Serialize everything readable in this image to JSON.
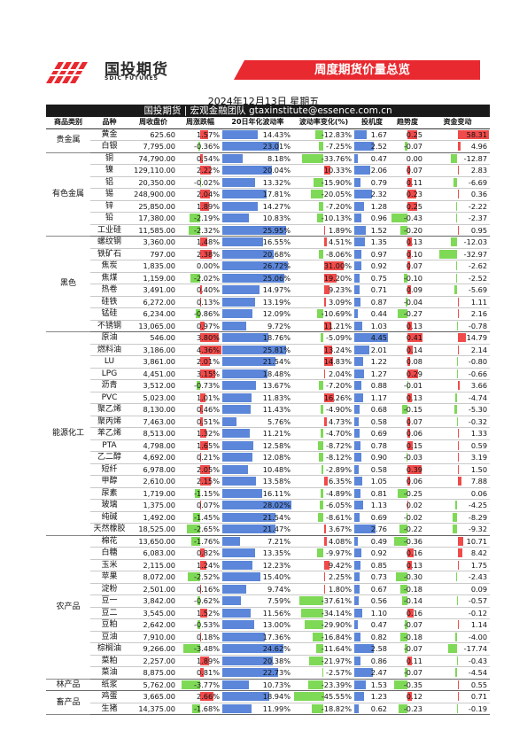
{
  "header": {
    "logo_cn": "国投期货",
    "logo_en": "SDIC FUTURES",
    "title": "周度期货价量总览",
    "date": "2024年12月13日 星期五",
    "team": "国投期货 | 宏观金融团队 gtaxinstitute@essence.com.cn"
  },
  "columns": [
    "商品类别",
    "品种",
    "周收盘价",
    "周涨跌幅",
    "20日年化波动率",
    "波动率变化(%)",
    "投机度",
    "趋势度",
    "资金变动"
  ],
  "colors": {
    "green": "#7ed957",
    "red": "#f04a4a",
    "blue": "#5b86d9",
    "pink": "#f5a3a3"
  },
  "groups": [
    {
      "category": "贵金属",
      "rows": [
        [
          "黄金",
          "625.60",
          "1.57%",
          "14.43%",
          "-12.83%",
          "1.67",
          "0.25",
          "58.31"
        ],
        [
          "白银",
          "7,795.00",
          "-0.36%",
          "23.01%",
          "-7.25%",
          "2.52",
          "-0.07",
          "4.96"
        ]
      ]
    },
    {
      "category": "有色金属",
      "rows": [
        [
          "铜",
          "74,790.00",
          "0.54%",
          "8.18%",
          "-33.76%",
          "0.47",
          "0.00",
          "-12.87"
        ],
        [
          "镍",
          "129,110.00",
          "2.22%",
          "20.04%",
          "10.33%",
          "2.06",
          "0.07",
          "2.83"
        ],
        [
          "铝",
          "20,350.00",
          "-0.02%",
          "13.32%",
          "-15.90%",
          "0.79",
          "0.11",
          "-6.69"
        ],
        [
          "锡",
          "248,900.00",
          "2.04%",
          "17.81%",
          "-20.05%",
          "2.32",
          "0.23",
          "0.36"
        ],
        [
          "锌",
          "25,850.00",
          "1.89%",
          "14.27%",
          "-7.20%",
          "1.28",
          "0.25",
          "-2.22"
        ],
        [
          "铅",
          "17,380.00",
          "-2.19%",
          "10.83%",
          "-10.13%",
          "0.96",
          "-0.43",
          "-2.37"
        ],
        [
          "工业硅",
          "11,585.00",
          "-2.32%",
          "25.95%",
          "1.89%",
          "1.52",
          "-0.20",
          "0.95"
        ]
      ]
    },
    {
      "category": "黑色",
      "rows": [
        [
          "螺纹钢",
          "3,360.00",
          "1.48%",
          "16.55%",
          "4.51%",
          "1.35",
          "0.13",
          "-12.03"
        ],
        [
          "铁矿石",
          "797.00",
          "2.38%",
          "20.68%",
          "-8.06%",
          "0.97",
          "0.10",
          "-32.97"
        ],
        [
          "焦炭",
          "1,835.00",
          "0.00%",
          "26.72%",
          "31.00%",
          "0.92",
          "0.07",
          "-2.62"
        ],
        [
          "焦煤",
          "1,159.00",
          "-2.02%",
          "25.06%",
          "19.20%",
          "0.75",
          "-0.10",
          "-2.52"
        ],
        [
          "热卷",
          "3,491.00",
          "0.40%",
          "14.97%",
          "9.23%",
          "0.71",
          "0.09",
          "-5.69"
        ],
        [
          "硅铁",
          "6,272.00",
          "0.13%",
          "13.19%",
          "3.09%",
          "0.87",
          "-0.04",
          "1.11"
        ],
        [
          "锰硅",
          "6,234.00",
          "-0.86%",
          "12.09%",
          "-10.69%",
          "0.44",
          "-0.27",
          "2.16"
        ],
        [
          "不锈钢",
          "13,065.00",
          "0.97%",
          "9.72%",
          "11.21%",
          "1.03",
          "0.13",
          "-0.78"
        ]
      ]
    },
    {
      "category": "能源化工",
      "rows": [
        [
          "原油",
          "546.00",
          "3.80%",
          "18.76%",
          "-5.09%",
          "4.45",
          "0.41",
          "14.79"
        ],
        [
          "燃料油",
          "3,186.00",
          "4.36%",
          "25.81%",
          "13.24%",
          "2.01",
          "0.14",
          "2.14"
        ],
        [
          "LU",
          "3,861.00",
          "2.01%",
          "21.54%",
          "14.83%",
          "1.22",
          "0.08",
          "-0.80"
        ],
        [
          "LPG",
          "4,451.00",
          "3.15%",
          "18.48%",
          "2.04%",
          "1.27",
          "0.29",
          "-0.66"
        ],
        [
          "沥青",
          "3,512.00",
          "-0.73%",
          "13.67%",
          "-7.20%",
          "0.88",
          "-0.01",
          "3.66"
        ],
        [
          "PVC",
          "5,023.00",
          "1.01%",
          "11.83%",
          "16.26%",
          "1.17",
          "0.13",
          "-4.74"
        ],
        [
          "聚乙烯",
          "8,130.00",
          "0.46%",
          "11.43%",
          "-4.90%",
          "0.68",
          "-0.15",
          "-5.30"
        ],
        [
          "聚丙烯",
          "7,463.00",
          "0.51%",
          "5.76%",
          "4.73%",
          "0.58",
          "0.07",
          "-0.32"
        ],
        [
          "苯乙烯",
          "8,513.00",
          "1.32%",
          "11.21%",
          "-4.70%",
          "0.69",
          "0.06",
          "1.33"
        ],
        [
          "PTA",
          "4,798.00",
          "1.65%",
          "12.58%",
          "-8.72%",
          "0.78",
          "0.15",
          "0.59"
        ],
        [
          "乙二醇",
          "4,692.00",
          "0.21%",
          "12.08%",
          "-8.12%",
          "0.90",
          "-0.03",
          "3.19"
        ],
        [
          "短纤",
          "6,978.00",
          "2.05%",
          "10.48%",
          "-2.89%",
          "0.58",
          "0.39",
          "1.50"
        ],
        [
          "甲醇",
          "2,610.00",
          "2.15%",
          "13.58%",
          "6.35%",
          "1.05",
          "0.06",
          "7.88"
        ],
        [
          "尿素",
          "1,719.00",
          "-1.15%",
          "16.11%",
          "-4.89%",
          "0.81",
          "-0.25",
          "0.06"
        ],
        [
          "玻璃",
          "1,375.00",
          "0.07%",
          "28.02%",
          "-6.05%",
          "1.13",
          "0.02",
          "-4.25"
        ],
        [
          "纯碱",
          "1,492.00",
          "-1.45%",
          "21.54%",
          "-8.61%",
          "0.69",
          "-0.02",
          "-8.29"
        ],
        [
          "天然橡胶",
          "18,525.00",
          "-2.65%",
          "21.47%",
          "3.67%",
          "2.76",
          "-0.22",
          "-9.32"
        ]
      ]
    },
    {
      "category": "农产品",
      "rows": [
        [
          "棉花",
          "13,650.00",
          "-1.76%",
          "7.21%",
          "4.08%",
          "0.49",
          "-0.36",
          "10.71"
        ],
        [
          "白糖",
          "6,083.00",
          "0.82%",
          "13.35%",
          "-9.97%",
          "0.92",
          "0.16",
          "8.42"
        ],
        [
          "玉米",
          "2,115.00",
          "1.24%",
          "12.23%",
          "9.42%",
          "0.85",
          "0.13",
          "1.75"
        ],
        [
          "苹果",
          "8,072.00",
          "-2.52%",
          "15.40%",
          "2.25%",
          "0.73",
          "-0.30",
          "-2.43"
        ],
        [
          "淀粉",
          "2,501.00",
          "0.16%",
          "9.74%",
          "1.80%",
          "0.67",
          "-0.18",
          "0.09"
        ],
        [
          "豆一",
          "3,842.00",
          "-0.62%",
          "7.59%",
          "-37.61%",
          "0.56",
          "-0.14",
          "-0.57"
        ],
        [
          "豆二",
          "3,545.00",
          "1.52%",
          "11.56%",
          "-34.14%",
          "1.10",
          "0.16",
          "-0.12"
        ],
        [
          "豆粕",
          "2,642.00",
          "-0.53%",
          "13.00%",
          "-29.90%",
          "0.47",
          "-0.07",
          "1.14"
        ],
        [
          "豆油",
          "7,910.00",
          "0.18%",
          "17.36%",
          "-16.84%",
          "0.82",
          "-0.18",
          "-4.00"
        ],
        [
          "棕榈油",
          "9,266.00",
          "-3.48%",
          "24.62%",
          "-11.64%",
          "2.58",
          "-0.07",
          "-17.74"
        ],
        [
          "菜粕",
          "2,257.00",
          "1.89%",
          "20.38%",
          "-21.97%",
          "0.86",
          "0.11",
          "-0.43"
        ],
        [
          "菜油",
          "8,875.00",
          "0.81%",
          "22.73%",
          "-2.57%",
          "2.47",
          "-0.07",
          "-4.54"
        ]
      ]
    },
    {
      "category": "林产品",
      "rows": [
        [
          "纸浆",
          "5,762.00",
          "-3.77%",
          "10.73%",
          "-23.39%",
          "1.53",
          "-0.35",
          "0.55"
        ]
      ]
    },
    {
      "category": "畜产品",
      "rows": [
        [
          "鸡蛋",
          "3,665.00",
          "2.66%",
          "18.94%",
          "-45.55%",
          "1.23",
          "0.12",
          "0.71"
        ],
        [
          "生猪",
          "14,375.00",
          "-1.68%",
          "11.99%",
          "-18.82%",
          "0.62",
          "-0.23",
          "-0.19"
        ]
      ]
    }
  ]
}
